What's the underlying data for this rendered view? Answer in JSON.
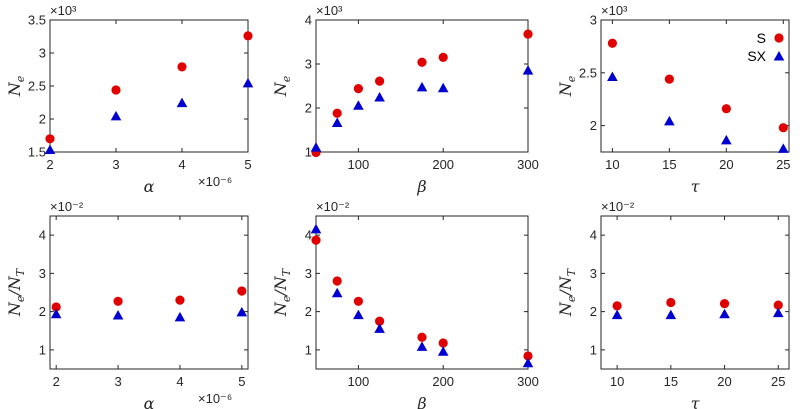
{
  "colors": {
    "S": "#e00000",
    "SX": "#0000d0",
    "axis": "#262626"
  },
  "legend": {
    "placement": "top-right",
    "entries": [
      {
        "label": "S",
        "marker": "circle"
      },
      {
        "label": "SX",
        "marker": "triangle"
      }
    ]
  },
  "chart_data": [
    {
      "type": "scatter",
      "xlabel": "α",
      "ylabel": "N_e",
      "xlim": [
        2,
        5
      ],
      "ylim": [
        1.5,
        3.5
      ],
      "xticks": [
        "2",
        "3",
        "4",
        "5"
      ],
      "xtick_values": [
        2,
        3,
        4,
        5
      ],
      "yticks": [
        "1.5",
        "2",
        "2.5",
        "3",
        "3.5"
      ],
      "ytick_values": [
        1.5,
        2,
        2.5,
        3,
        3.5
      ],
      "y_multiplier": "×10³",
      "x_multiplier": "×10⁻⁶",
      "x": [
        2,
        3,
        4,
        5
      ],
      "series": [
        {
          "name": "S",
          "values": [
            1.7,
            2.44,
            2.79,
            3.26
          ]
        },
        {
          "name": "SX",
          "values": [
            1.53,
            2.04,
            2.24,
            2.54
          ]
        }
      ]
    },
    {
      "type": "scatter",
      "xlabel": "β",
      "ylabel": "N_e",
      "xlim": [
        50,
        300
      ],
      "ylim": [
        1,
        4
      ],
      "xticks": [
        "100",
        "200",
        "300"
      ],
      "xtick_values": [
        100,
        200,
        300
      ],
      "yticks": [
        "1",
        "2",
        "3",
        "4"
      ],
      "ytick_values": [
        1,
        2,
        3,
        4
      ],
      "y_multiplier": "×10³",
      "x": [
        50,
        75,
        100,
        125,
        175,
        200,
        300
      ],
      "series": [
        {
          "name": "S",
          "values": [
            0.99,
            1.88,
            2.44,
            2.61,
            3.04,
            3.15,
            3.68
          ]
        },
        {
          "name": "SX",
          "values": [
            1.1,
            1.66,
            2.05,
            2.24,
            2.47,
            2.45,
            2.85
          ]
        }
      ]
    },
    {
      "type": "scatter",
      "xlabel": "τ",
      "ylabel": "N_e",
      "xlim": [
        9,
        25.5
      ],
      "ylim": [
        1.75,
        3
      ],
      "xticks": [
        "10",
        "15",
        "20",
        "25"
      ],
      "xtick_values": [
        10,
        15,
        20,
        25
      ],
      "yticks": [
        "2",
        "2.5",
        "3"
      ],
      "ytick_values": [
        2,
        2.5,
        3
      ],
      "y_multiplier": "×10³",
      "x": [
        10,
        15,
        20,
        25
      ],
      "series": [
        {
          "name": "S",
          "values": [
            2.78,
            2.44,
            2.16,
            1.98
          ]
        },
        {
          "name": "SX",
          "values": [
            2.46,
            2.04,
            1.86,
            1.78
          ]
        }
      ]
    },
    {
      "type": "scatter",
      "xlabel": "α",
      "ylabel": "N_e/N_T",
      "xlim": [
        1.9,
        5.1
      ],
      "ylim": [
        0.5,
        4.5
      ],
      "xticks": [
        "2",
        "3",
        "4",
        "5"
      ],
      "xtick_values": [
        2,
        3,
        4,
        5
      ],
      "yticks": [
        "1",
        "2",
        "3",
        "4"
      ],
      "ytick_values": [
        1,
        2,
        3,
        4
      ],
      "y_multiplier": "×10⁻²",
      "x_multiplier": "×10⁻⁶",
      "x": [
        2,
        3,
        4,
        5
      ],
      "series": [
        {
          "name": "S",
          "values": [
            2.12,
            2.27,
            2.3,
            2.54
          ]
        },
        {
          "name": "SX",
          "values": [
            1.93,
            1.9,
            1.85,
            1.98
          ]
        }
      ]
    },
    {
      "type": "scatter",
      "xlabel": "β",
      "ylabel": "N_e/N_T",
      "xlim": [
        50,
        300
      ],
      "ylim": [
        0.5,
        4.5
      ],
      "xticks": [
        "100",
        "200",
        "300"
      ],
      "xtick_values": [
        100,
        200,
        300
      ],
      "yticks": [
        "1",
        "2",
        "3",
        "4"
      ],
      "ytick_values": [
        1,
        2,
        3,
        4
      ],
      "y_multiplier": "×10⁻²",
      "x": [
        50,
        75,
        100,
        125,
        175,
        200,
        300
      ],
      "series": [
        {
          "name": "S",
          "values": [
            3.87,
            2.8,
            2.27,
            1.75,
            1.33,
            1.18,
            0.84
          ]
        },
        {
          "name": "SX",
          "values": [
            4.15,
            2.48,
            1.91,
            1.55,
            1.08,
            0.95,
            0.65
          ]
        }
      ]
    },
    {
      "type": "scatter",
      "xlabel": "τ",
      "ylabel": "N_e/N_T",
      "xlim": [
        8.5,
        26
      ],
      "ylim": [
        0.5,
        4.5
      ],
      "xticks": [
        "10",
        "15",
        "20",
        "25"
      ],
      "xtick_values": [
        10,
        15,
        20,
        25
      ],
      "yticks": [
        "1",
        "2",
        "3",
        "4"
      ],
      "ytick_values": [
        1,
        2,
        3,
        4
      ],
      "y_multiplier": "×10⁻²",
      "x": [
        10,
        15,
        20,
        25
      ],
      "series": [
        {
          "name": "S",
          "values": [
            2.15,
            2.24,
            2.21,
            2.17
          ]
        },
        {
          "name": "SX",
          "values": [
            1.91,
            1.91,
            1.93,
            1.96
          ]
        }
      ]
    }
  ]
}
